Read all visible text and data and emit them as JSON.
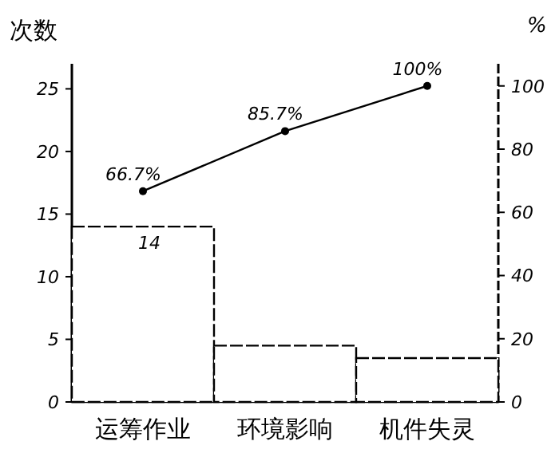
{
  "chart_data": {
    "type": "bar",
    "ylabel": "次数",
    "y2label": "%",
    "categories": [
      "运筹作业",
      "环境影响",
      "机件失灵"
    ],
    "series": [
      {
        "color": "#ffffff",
        "values": [
          14,
          4.5,
          3.5
        ],
        "value_labels": [
          "14",
          null,
          null
        ]
      },
      {
        "type": "line",
        "axis": "y2",
        "color": "#000000",
        "marker": "circle",
        "values": [
          66.7,
          85.7,
          100
        ],
        "value_labels": [
          "66.7%",
          "85.7%",
          "100%"
        ]
      }
    ],
    "ylim": [
      0,
      27
    ],
    "yticks": [
      0,
      5,
      10,
      15,
      20,
      25
    ],
    "y2lim": [
      0,
      107
    ],
    "y2ticks": [
      0,
      20,
      40,
      60,
      80,
      100
    ],
    "grid": false
  }
}
